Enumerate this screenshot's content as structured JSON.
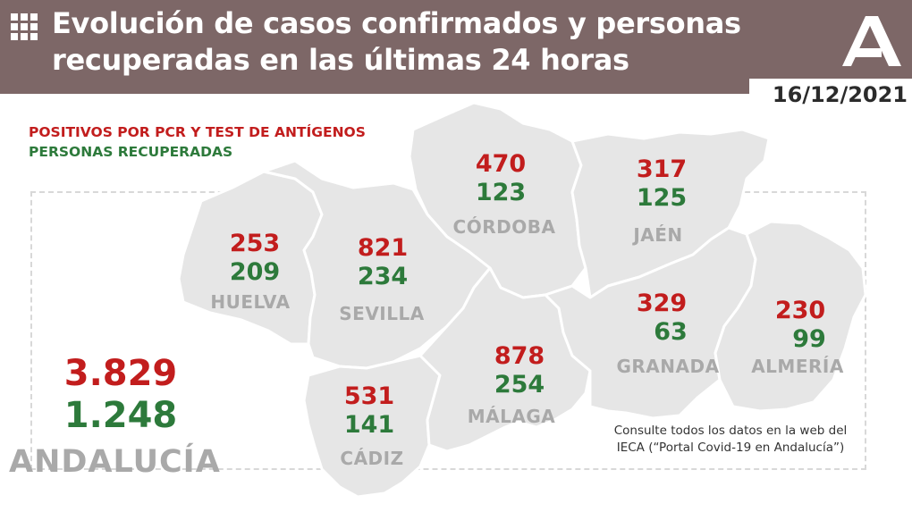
{
  "header": {
    "title": "Evolución de casos confirmados y personas recuperadas en las últimas 24 horas",
    "date": "16/12/2021",
    "background_color": "#7d6767"
  },
  "icons": {
    "menu": "grid-icon",
    "logo": "junta-andalucia-logo"
  },
  "legend": {
    "positives_label": "POSITIVOS POR PCR Y TEST DE ANTÍGENOS",
    "recovered_label": "PERSONAS RECUPERADAS",
    "positives_color": "#c21d1d",
    "recovered_color": "#2d7a3b"
  },
  "provinces": [
    {
      "name": "HUELVA",
      "positives": "253",
      "recovered": "209"
    },
    {
      "name": "SEVILLA",
      "positives": "821",
      "recovered": "234"
    },
    {
      "name": "CÓRDOBA",
      "positives": "470",
      "recovered": "123"
    },
    {
      "name": "JAÉN",
      "positives": "317",
      "recovered": "125"
    },
    {
      "name": "GRANADA",
      "positives": "329",
      "recovered": "63"
    },
    {
      "name": "ALMERÍA",
      "positives": "230",
      "recovered": "99"
    },
    {
      "name": "MÁLAGA",
      "positives": "878",
      "recovered": "254"
    },
    {
      "name": "CÁDIZ",
      "positives": "531",
      "recovered": "141"
    }
  ],
  "total": {
    "name": "ANDALUCÍA",
    "positives": "3.829",
    "recovered": "1.248"
  },
  "footnote": {
    "line1": "Consulte todos los datos en la web del",
    "line2": "IECA (“Portal Covid-19 en Andalucía”)"
  }
}
